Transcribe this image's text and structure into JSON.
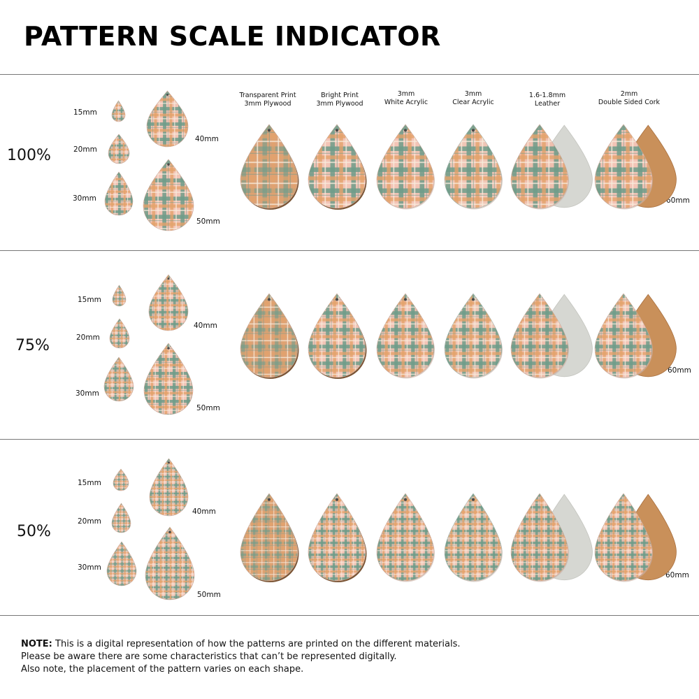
{
  "title": "PATTERN SCALE INDICATOR",
  "colors": {
    "plaid_sage": "#6f9c8a",
    "plaid_orange": "#e3a36c",
    "plaid_pink": "#f3c4b6",
    "plaid_cream": "#f7ebdc",
    "plywood_edge": "#7a5434",
    "suede": "#d6d7d2",
    "cork": "#c9905a"
  },
  "size_labels": [
    "15mm",
    "20mm",
    "30mm",
    "40mm",
    "50mm"
  ],
  "large_size_label": "60mm",
  "materials": [
    {
      "line1": "Transparent Print",
      "line2": "3mm Plywood",
      "icon": "plywood-transparent-teardrop"
    },
    {
      "line1": "Bright Print",
      "line2": "3mm Plywood",
      "icon": "plywood-bright-teardrop"
    },
    {
      "line1": "3mm",
      "line2": "White Acrylic",
      "icon": "white-acrylic-teardrop"
    },
    {
      "line1": "3mm",
      "line2": "Clear Acrylic",
      "icon": "clear-acrylic-teardrop"
    },
    {
      "line1": "1.6-1.8mm",
      "line2": "Leather",
      "icon": "leather-teardrop"
    },
    {
      "line1": "2mm",
      "line2": "Double Sided Cork",
      "icon": "cork-teardrop"
    }
  ],
  "sections": [
    {
      "scale": "100%"
    },
    {
      "scale": "75%"
    },
    {
      "scale": "50%"
    }
  ],
  "note": {
    "label": "NOTE:",
    "line1": " This is a digital representation of how the patterns are printed on the different materials.",
    "line2": "Please be aware there are some characteristics that can’t be represented digitally.",
    "line3": "Also note, the placement of the pattern varies on each shape."
  }
}
